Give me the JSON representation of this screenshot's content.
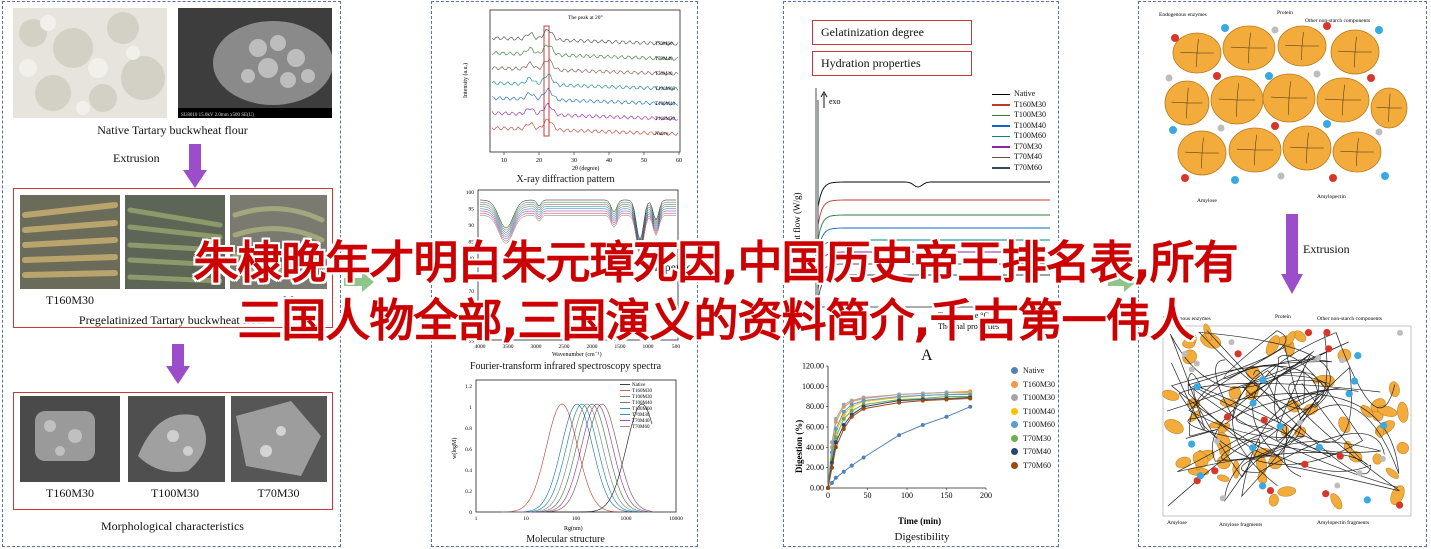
{
  "overlay": {
    "line1": "朱棣晚年才明白朱元璋死因,中国历史帝王排名表,所有",
    "line2": "三国人物全部,三国演义的资料简介,千古第一伟人"
  },
  "panel1": {
    "top_caption": "Native Tartary buckwheat flour",
    "step1_label": "Extrusion",
    "product_names": [
      "T160M30",
      "T100M30",
      "T70M30"
    ],
    "partial_stick_label": "My",
    "stick_caption": "Pregelatinized Tartary buckwheat flour",
    "morph_caption": "Morphological characteristics",
    "sem_scale": "SU8010 15.0kV 2.0mm x500 SE(U)"
  },
  "panel2": {
    "xrd": {
      "caption": "X-ray diffraction pattern",
      "peak_note": "The peak at 20°",
      "ylabel": "Intensity (a.u.)",
      "xlabel": "2θ (degree)",
      "xticks": [
        "10",
        "20",
        "30",
        "40",
        "50",
        "60"
      ],
      "traces": [
        "T70M60",
        "T70M40",
        "T70M30",
        "T100M60",
        "T100M40",
        "T160M30",
        "Native"
      ]
    },
    "ftir": {
      "caption": "Fourier-transform infrared spectroscopy spectra",
      "ylabel": "Transmittance (%)",
      "xlabel": "Wavenumber (cm⁻¹)",
      "xticks": [
        "4000",
        "3500",
        "3000",
        "2500",
        "2000",
        "1500",
        "1000",
        "500"
      ],
      "yticks": [
        "100",
        "95",
        "90",
        "85",
        "80",
        "75",
        "70",
        "65",
        "60",
        "55"
      ]
    },
    "mw": {
      "caption": "Molecular structure",
      "ylabel": "w(logM)",
      "xlabel": "Rg(nm)",
      "xticks": [
        "1",
        "10",
        "100",
        "1000",
        "10000"
      ],
      "yticks": [
        "0",
        "0.2",
        "0.4",
        "0.6",
        "0.8",
        "1",
        "1.2"
      ],
      "legend": [
        "Native",
        "T160M30",
        "T100M30",
        "T100M40",
        "T100M60",
        "T70M30",
        "T70M40",
        "T70M60"
      ]
    },
    "partial_overlay_text": "Properties"
  },
  "panel3": {
    "box1": "Gelatinization degree",
    "box2": "Hydration properties",
    "dsc": {
      "ylabel": "Heat flow (W/g)",
      "exo": "exo",
      "xlabel_partial": "Temperature °C",
      "sublabel": "Thermal properties",
      "legend": [
        "Native",
        "T160M30",
        "T100M30",
        "T100M40",
        "T100M60",
        "T70M30",
        "T70M40",
        "T70M60"
      ]
    },
    "marker_a": "A",
    "dig": {
      "caption": "Digestibility",
      "ylabel": "Digestion (%)",
      "xlabel": "Time (min)",
      "yticks": [
        "0.00",
        "20.00",
        "40.00",
        "60.00",
        "80.00",
        "100.00",
        "120.00"
      ],
      "xticks": [
        "0",
        "50",
        "100",
        "150",
        "200"
      ],
      "legend": [
        "Native",
        "T160M30",
        "T100M30",
        "T100M40",
        "T100M60",
        "T70M30",
        "T70M40",
        "T70M60"
      ]
    }
  },
  "panel4": {
    "top_labels": {
      "endogenous": "Endogenous enzymes",
      "protein": "Protein",
      "other": "Other non-starch components",
      "amylose": "Amylose",
      "amylopectin": "Amylopectin"
    },
    "step_label_partial": "Extrusion",
    "bottom_labels": {
      "endogenous": "Endogenous enzymes",
      "protein": "Protein",
      "other": "Other non-starch components",
      "amylose": "Amylose",
      "amylose_fragments": "Amylose fragments",
      "amylopectin_fragments": "Amylopectin fragments"
    }
  },
  "colors": {
    "panel_border": "#5a6fa8",
    "red_box": "#c83a3a",
    "purple_arrow": "#9b4dca",
    "green_arrow": "#8fc58a",
    "starch_orange": "#f3ac3c",
    "protein_blue": "#3aa9e3",
    "enzyme_red": "#d9362a",
    "overlay_red": "#cc0000"
  },
  "chart_data": [
    {
      "type": "line",
      "title": "Digestibility",
      "xlabel": "Time (min)",
      "ylabel": "Digestion (%)",
      "xlim": [
        0,
        200
      ],
      "ylim": [
        0,
        120
      ],
      "x": [
        0,
        5,
        10,
        20,
        30,
        45,
        90,
        120,
        150,
        180
      ],
      "series": [
        {
          "name": "Native",
          "values": [
            0,
            5,
            10,
            16,
            22,
            30,
            52,
            62,
            70,
            80
          ]
        },
        {
          "name": "T160M30",
          "values": [
            0,
            40,
            65,
            80,
            85,
            88,
            92,
            93,
            94,
            95
          ]
        },
        {
          "name": "T100M30",
          "values": [
            0,
            45,
            68,
            82,
            86,
            89,
            92,
            93,
            94,
            94
          ]
        },
        {
          "name": "T100M40",
          "values": [
            0,
            30,
            55,
            72,
            80,
            85,
            89,
            91,
            92,
            93
          ]
        },
        {
          "name": "T100M60",
          "values": [
            0,
            35,
            58,
            75,
            82,
            86,
            90,
            91,
            92,
            92
          ]
        },
        {
          "name": "T70M30",
          "values": [
            0,
            28,
            50,
            68,
            76,
            82,
            87,
            88,
            90,
            90
          ]
        },
        {
          "name": "T70M40",
          "values": [
            0,
            25,
            45,
            62,
            72,
            80,
            86,
            87,
            88,
            89
          ]
        },
        {
          "name": "T70M60",
          "values": [
            0,
            20,
            40,
            58,
            70,
            78,
            84,
            86,
            87,
            88
          ]
        }
      ],
      "colors": [
        "#4f81bd",
        "#f79646",
        "#a5a5a5",
        "#ffc000",
        "#5b9bd5",
        "#70ad47",
        "#264478",
        "#9e480e"
      ]
    }
  ]
}
